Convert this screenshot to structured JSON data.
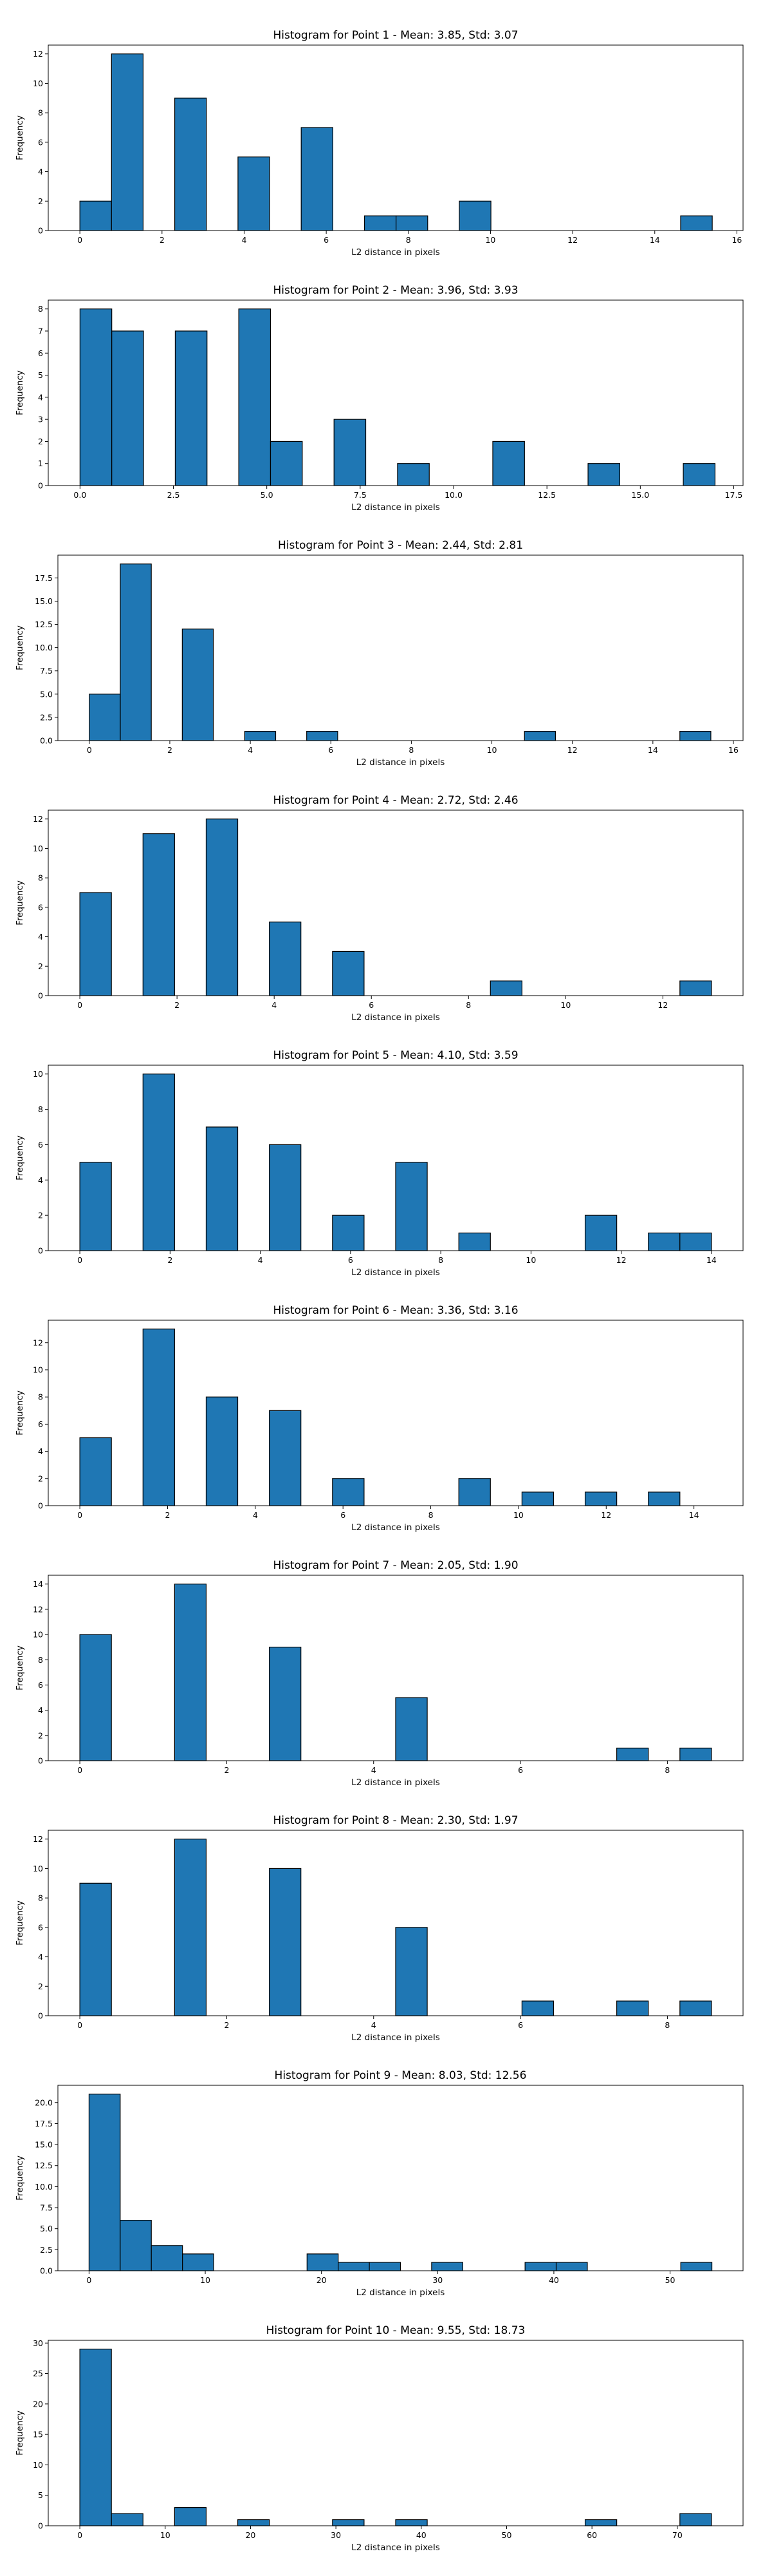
{
  "chart_data": [
    {
      "type": "bar",
      "title": "Histogram for Point 1 - Mean: 3.85, Std: 3.07",
      "xlabel": "L2 distance in pixels",
      "ylabel": "Frequency",
      "xlim": [
        -0.77,
        16.15
      ],
      "ylim": [
        0,
        12.6
      ],
      "xticks": [
        0,
        2,
        4,
        6,
        8,
        10,
        12,
        14,
        16
      ],
      "xtick_labels": [
        "0",
        "2",
        "4",
        "6",
        "8",
        "10",
        "12",
        "14",
        "16"
      ],
      "yticks": [
        0,
        2,
        4,
        6,
        8,
        10,
        12
      ],
      "ytick_labels": [
        "0",
        "2",
        "4",
        "6",
        "8",
        "10",
        "12"
      ],
      "bin_width": 0.77,
      "bins": [
        [
          0,
          2
        ],
        [
          0.77,
          12
        ],
        [
          2.31,
          9
        ],
        [
          3.85,
          5
        ],
        [
          5.39,
          7
        ],
        [
          6.93,
          1
        ],
        [
          7.7,
          1
        ],
        [
          9.24,
          2
        ],
        [
          14.63,
          1
        ]
      ]
    },
    {
      "type": "bar",
      "title": "Histogram for Point 2 - Mean: 3.96, Std: 3.93",
      "xlabel": "L2 distance in pixels",
      "ylabel": "Frequency",
      "xlim": [
        -0.85,
        17.75
      ],
      "ylim": [
        0,
        8.4
      ],
      "xticks": [
        0,
        2.5,
        5,
        7.5,
        10,
        12.5,
        15,
        17.5
      ],
      "xtick_labels": [
        "0.0",
        "2.5",
        "5.0",
        "7.5",
        "10.0",
        "12.5",
        "15.0",
        "17.5"
      ],
      "yticks": [
        0,
        1,
        2,
        3,
        4,
        5,
        6,
        7,
        8
      ],
      "ytick_labels": [
        "0",
        "1",
        "2",
        "3",
        "4",
        "5",
        "6",
        "7",
        "8"
      ],
      "bin_width": 0.85,
      "bins": [
        [
          0,
          8
        ],
        [
          0.85,
          7
        ],
        [
          2.55,
          7
        ],
        [
          4.25,
          8
        ],
        [
          5.1,
          2
        ],
        [
          6.8,
          3
        ],
        [
          8.5,
          1
        ],
        [
          11.05,
          2
        ],
        [
          13.6,
          1
        ],
        [
          16.15,
          1
        ]
      ]
    },
    {
      "type": "bar",
      "title": "Histogram for Point 3 - Mean: 2.44, Std: 2.81",
      "xlabel": "L2 distance in pixels",
      "ylabel": "Frequency",
      "xlim": [
        -0.78,
        16.24
      ],
      "ylim": [
        0,
        19.95
      ],
      "xticks": [
        0,
        2,
        4,
        6,
        8,
        10,
        12,
        14,
        16
      ],
      "xtick_labels": [
        "0",
        "2",
        "4",
        "6",
        "8",
        "10",
        "12",
        "14",
        "16"
      ],
      "yticks": [
        0,
        2.5,
        5,
        7.5,
        10,
        12.5,
        15,
        17.5
      ],
      "ytick_labels": [
        "0.0",
        "2.5",
        "5.0",
        "7.5",
        "10.0",
        "12.5",
        "15.0",
        "17.5"
      ],
      "bin_width": 0.77,
      "bins": [
        [
          0,
          5
        ],
        [
          0.77,
          19
        ],
        [
          2.31,
          12
        ],
        [
          3.86,
          1
        ],
        [
          5.4,
          1
        ],
        [
          10.81,
          1
        ],
        [
          14.67,
          1
        ]
      ]
    },
    {
      "type": "bar",
      "title": "Histogram for Point 4 - Mean: 2.72, Std: 2.46",
      "xlabel": "L2 distance in pixels",
      "ylabel": "Frequency",
      "xlim": [
        -0.65,
        13.65
      ],
      "ylim": [
        0,
        12.6
      ],
      "xticks": [
        0,
        2,
        4,
        6,
        8,
        10,
        12
      ],
      "xtick_labels": [
        "0",
        "2",
        "4",
        "6",
        "8",
        "10",
        "12"
      ],
      "yticks": [
        0,
        2,
        4,
        6,
        8,
        10,
        12
      ],
      "ytick_labels": [
        "0",
        "2",
        "4",
        "6",
        "8",
        "10",
        "12"
      ],
      "bin_width": 0.65,
      "bins": [
        [
          0,
          7
        ],
        [
          1.3,
          11
        ],
        [
          2.6,
          12
        ],
        [
          3.9,
          5
        ],
        [
          5.2,
          3
        ],
        [
          8.45,
          1
        ],
        [
          12.35,
          1
        ]
      ]
    },
    {
      "type": "bar",
      "title": "Histogram for Point 5 - Mean: 4.10, Std: 3.59",
      "xlabel": "L2 distance in pixels",
      "ylabel": "Frequency",
      "xlim": [
        -0.7,
        14.7
      ],
      "ylim": [
        0,
        10.5
      ],
      "xticks": [
        0,
        2,
        4,
        6,
        8,
        10,
        12,
        14
      ],
      "xtick_labels": [
        "0",
        "2",
        "4",
        "6",
        "8",
        "10",
        "12",
        "14"
      ],
      "yticks": [
        0,
        2,
        4,
        6,
        8,
        10
      ],
      "ytick_labels": [
        "0",
        "2",
        "4",
        "6",
        "8",
        "10"
      ],
      "bin_width": 0.7,
      "bins": [
        [
          0,
          5
        ],
        [
          1.4,
          10
        ],
        [
          2.8,
          7
        ],
        [
          4.2,
          6
        ],
        [
          5.6,
          2
        ],
        [
          7.0,
          5
        ],
        [
          8.4,
          1
        ],
        [
          11.2,
          2
        ],
        [
          12.6,
          1
        ],
        [
          13.3,
          1
        ]
      ]
    },
    {
      "type": "bar",
      "title": "Histogram for Point 6 - Mean: 3.36, Std: 3.16",
      "xlabel": "L2 distance in pixels",
      "ylabel": "Frequency",
      "xlim": [
        -0.72,
        15.12
      ],
      "ylim": [
        0,
        13.65
      ],
      "xticks": [
        0,
        2,
        4,
        6,
        8,
        10,
        12,
        14
      ],
      "xtick_labels": [
        "0",
        "2",
        "4",
        "6",
        "8",
        "10",
        "12",
        "14"
      ],
      "yticks": [
        0,
        2,
        4,
        6,
        8,
        10,
        12
      ],
      "ytick_labels": [
        "0",
        "2",
        "4",
        "6",
        "8",
        "10",
        "12"
      ],
      "bin_width": 0.72,
      "bins": [
        [
          0,
          5
        ],
        [
          1.44,
          13
        ],
        [
          2.88,
          8
        ],
        [
          4.32,
          7
        ],
        [
          5.76,
          2
        ],
        [
          8.64,
          2
        ],
        [
          10.08,
          1
        ],
        [
          11.52,
          1
        ],
        [
          12.96,
          1
        ]
      ]
    },
    {
      "type": "bar",
      "title": "Histogram for Point 7 - Mean: 2.05, Std: 1.90",
      "xlabel": "L2 distance in pixels",
      "ylabel": "Frequency",
      "xlim": [
        -0.43,
        9.03
      ],
      "ylim": [
        0,
        14.7
      ],
      "xticks": [
        0,
        2,
        4,
        6,
        8
      ],
      "xtick_labels": [
        "0",
        "2",
        "4",
        "6",
        "8"
      ],
      "yticks": [
        0,
        2,
        4,
        6,
        8,
        10,
        12,
        14
      ],
      "ytick_labels": [
        "0",
        "2",
        "4",
        "6",
        "8",
        "10",
        "12",
        "14"
      ],
      "bin_width": 0.43,
      "bins": [
        [
          0,
          10
        ],
        [
          1.29,
          14
        ],
        [
          2.58,
          9
        ],
        [
          4.3,
          5
        ],
        [
          7.31,
          1
        ],
        [
          8.17,
          1
        ]
      ]
    },
    {
      "type": "bar",
      "title": "Histogram for Point 8 - Mean: 2.30, Std: 1.97",
      "xlabel": "L2 distance in pixels",
      "ylabel": "Frequency",
      "xlim": [
        -0.43,
        9.03
      ],
      "ylim": [
        0,
        12.6
      ],
      "xticks": [
        0,
        2,
        4,
        6,
        8
      ],
      "xtick_labels": [
        "0",
        "2",
        "4",
        "6",
        "8"
      ],
      "yticks": [
        0,
        2,
        4,
        6,
        8,
        10,
        12
      ],
      "ytick_labels": [
        "0",
        "2",
        "4",
        "6",
        "8",
        "10",
        "12"
      ],
      "bin_width": 0.43,
      "bins": [
        [
          0,
          9
        ],
        [
          1.29,
          12
        ],
        [
          2.58,
          10
        ],
        [
          4.3,
          6
        ],
        [
          6.02,
          1
        ],
        [
          7.31,
          1
        ],
        [
          8.17,
          1
        ]
      ]
    },
    {
      "type": "bar",
      "title": "Histogram for Point 9 - Mean: 8.03, Std: 12.56",
      "xlabel": "L2 distance in pixels",
      "ylabel": "Frequency",
      "xlim": [
        -2.68,
        56.28
      ],
      "ylim": [
        0,
        22.05
      ],
      "xticks": [
        0,
        10,
        20,
        30,
        40,
        50
      ],
      "xtick_labels": [
        "0",
        "10",
        "20",
        "30",
        "40",
        "50"
      ],
      "yticks": [
        0,
        2.5,
        5,
        7.5,
        10,
        12.5,
        15,
        17.5,
        20
      ],
      "ytick_labels": [
        "0.0",
        "2.5",
        "5.0",
        "7.5",
        "10.0",
        "12.5",
        "15.0",
        "17.5",
        "20.0"
      ],
      "bin_width": 2.68,
      "bins": [
        [
          0,
          21
        ],
        [
          2.68,
          6
        ],
        [
          5.36,
          3
        ],
        [
          8.04,
          2
        ],
        [
          18.76,
          2
        ],
        [
          21.44,
          1
        ],
        [
          24.12,
          1
        ],
        [
          29.48,
          1
        ],
        [
          37.52,
          1
        ],
        [
          40.2,
          1
        ],
        [
          50.92,
          1
        ]
      ]
    },
    {
      "type": "bar",
      "title": "Histogram for Point 10 - Mean: 9.55, Std: 18.73",
      "xlabel": "L2 distance in pixels",
      "ylabel": "Frequency",
      "xlim": [
        -3.7,
        77.7
      ],
      "ylim": [
        0,
        30.45
      ],
      "xticks": [
        0,
        10,
        20,
        30,
        40,
        50,
        60,
        70
      ],
      "xtick_labels": [
        "0",
        "10",
        "20",
        "30",
        "40",
        "50",
        "60",
        "70"
      ],
      "yticks": [
        0,
        5,
        10,
        15,
        20,
        25,
        30
      ],
      "ytick_labels": [
        "0",
        "5",
        "10",
        "15",
        "20",
        "25",
        "30"
      ],
      "bin_width": 3.7,
      "bins": [
        [
          0,
          29
        ],
        [
          3.7,
          2
        ],
        [
          11.1,
          3
        ],
        [
          18.5,
          1
        ],
        [
          29.6,
          1
        ],
        [
          37.0,
          1
        ],
        [
          59.2,
          1
        ],
        [
          70.3,
          2
        ]
      ]
    }
  ]
}
